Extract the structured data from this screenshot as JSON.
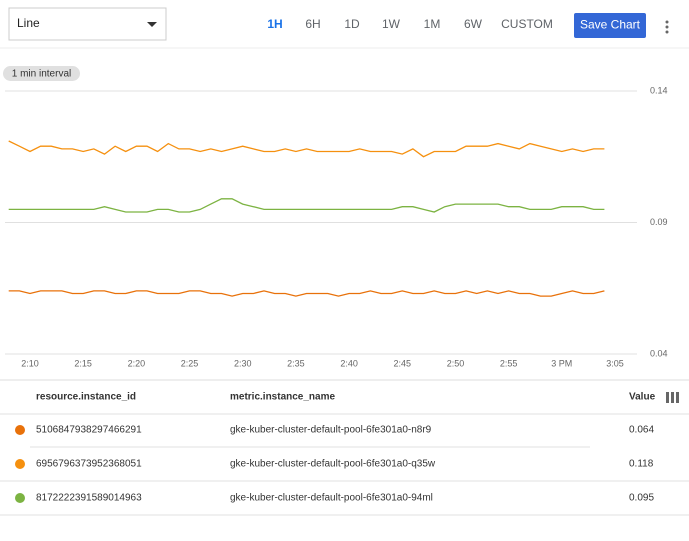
{
  "toolbar": {
    "chart_type": "Line",
    "ranges": [
      "1H",
      "6H",
      "1D",
      "1W",
      "1M",
      "6W",
      "CUSTOM"
    ],
    "active_range": 0,
    "save": "Save Chart"
  },
  "chart_data": {
    "type": "line",
    "interval": "1 min interval",
    "x": [
      "2:08",
      "2:09",
      "2:10",
      "2:11",
      "2:12",
      "2:13",
      "2:14",
      "2:15",
      "2:16",
      "2:17",
      "2:18",
      "2:19",
      "2:20",
      "2:21",
      "2:22",
      "2:23",
      "2:24",
      "2:25",
      "2:26",
      "2:27",
      "2:28",
      "2:29",
      "2:30",
      "2:31",
      "2:32",
      "2:33",
      "2:34",
      "2:35",
      "2:36",
      "2:37",
      "2:38",
      "2:39",
      "2:40",
      "2:41",
      "2:42",
      "2:43",
      "2:44",
      "2:45",
      "2:46",
      "2:47",
      "2:48",
      "2:49",
      "2:50",
      "2:51",
      "2:52",
      "2:53",
      "2:54",
      "2:55",
      "2:56",
      "2:57",
      "2:58",
      "2:59",
      "3:00",
      "3:01",
      "3:02",
      "3:03",
      "3:04"
    ],
    "xticks": [
      "2:10",
      "2:15",
      "2:20",
      "2:25",
      "2:30",
      "2:35",
      "2:40",
      "2:45",
      "2:50",
      "2:55",
      {
        "value": "3:00",
        "label": "3 PM"
      },
      "3:05"
    ],
    "ylim": [
      0.04,
      0.14
    ],
    "yticks": [
      0.04,
      0.09,
      0.14
    ],
    "grid": true,
    "series": [
      {
        "name": "gke-kuber-cluster-default-pool-6fe301a0-n8r9",
        "resource_id": "5106847938297466291",
        "color": "#e8710a",
        "values": [
          0.064,
          0.064,
          0.063,
          0.064,
          0.064,
          0.064,
          0.063,
          0.063,
          0.064,
          0.064,
          0.063,
          0.063,
          0.064,
          0.064,
          0.063,
          0.063,
          0.063,
          0.064,
          0.064,
          0.063,
          0.063,
          0.062,
          0.063,
          0.063,
          0.064,
          0.063,
          0.063,
          0.062,
          0.063,
          0.063,
          0.063,
          0.062,
          0.063,
          0.063,
          0.064,
          0.063,
          0.063,
          0.064,
          0.063,
          0.063,
          0.064,
          0.063,
          0.063,
          0.064,
          0.063,
          0.064,
          0.063,
          0.064,
          0.063,
          0.063,
          0.062,
          0.062,
          0.063,
          0.064,
          0.063,
          0.063,
          0.064
        ]
      },
      {
        "name": "gke-kuber-cluster-default-pool-6fe301a0-q35w",
        "resource_id": "6956796373952368051",
        "color": "#f5900f",
        "values": [
          0.121,
          0.119,
          0.117,
          0.119,
          0.119,
          0.118,
          0.118,
          0.117,
          0.118,
          0.116,
          0.119,
          0.117,
          0.119,
          0.119,
          0.117,
          0.12,
          0.118,
          0.118,
          0.117,
          0.118,
          0.117,
          0.118,
          0.119,
          0.118,
          0.117,
          0.117,
          0.118,
          0.117,
          0.118,
          0.117,
          0.117,
          0.117,
          0.117,
          0.118,
          0.117,
          0.117,
          0.117,
          0.116,
          0.118,
          0.115,
          0.117,
          0.117,
          0.117,
          0.119,
          0.119,
          0.119,
          0.12,
          0.119,
          0.118,
          0.12,
          0.119,
          0.118,
          0.117,
          0.118,
          0.117,
          0.118,
          0.118
        ]
      },
      {
        "name": "gke-kuber-cluster-default-pool-6fe301a0-94ml",
        "resource_id": "8172222391589014963",
        "color": "#7cb342",
        "values": [
          0.095,
          0.095,
          0.095,
          0.095,
          0.095,
          0.095,
          0.095,
          0.095,
          0.095,
          0.096,
          0.095,
          0.094,
          0.094,
          0.094,
          0.095,
          0.095,
          0.094,
          0.094,
          0.095,
          0.097,
          0.099,
          0.099,
          0.097,
          0.096,
          0.095,
          0.095,
          0.095,
          0.095,
          0.095,
          0.095,
          0.095,
          0.095,
          0.095,
          0.095,
          0.095,
          0.095,
          0.095,
          0.096,
          0.096,
          0.095,
          0.094,
          0.096,
          0.097,
          0.097,
          0.097,
          0.097,
          0.097,
          0.096,
          0.096,
          0.095,
          0.095,
          0.095,
          0.096,
          0.096,
          0.096,
          0.095,
          0.095
        ]
      }
    ]
  },
  "table": {
    "columns": [
      "resource.instance_id",
      "metric.instance_name",
      "Value"
    ]
  }
}
